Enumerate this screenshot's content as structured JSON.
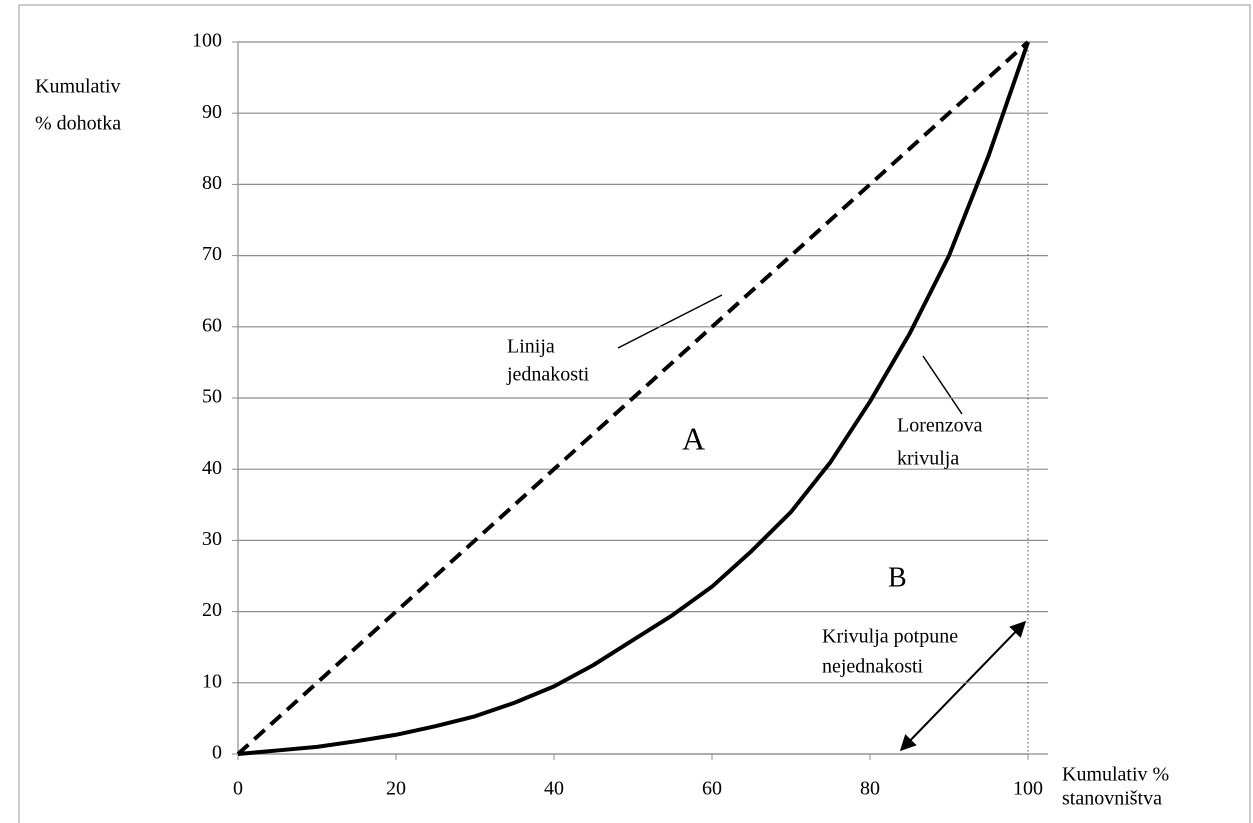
{
  "chart_data": {
    "type": "line",
    "y_label": [
      "Kumulativ",
      "% dohotka"
    ],
    "x_label": [
      "Kumulativ %",
      "stanovništva"
    ],
    "xlim": [
      0,
      100
    ],
    "ylim": [
      0,
      100
    ],
    "xticks": [
      0,
      20,
      40,
      60,
      80,
      100
    ],
    "yticks": [
      0,
      10,
      20,
      30,
      40,
      50,
      60,
      70,
      80,
      90,
      100
    ],
    "grid": true,
    "series": [
      {
        "color": "#000000",
        "dashed": true,
        "x": [
          0,
          100
        ],
        "values": [
          0,
          100
        ]
      },
      {
        "color": "#000000",
        "dashed": false,
        "x": [
          0,
          5,
          10,
          15,
          20,
          25,
          30,
          35,
          40,
          45,
          50,
          55,
          60,
          65,
          70,
          75,
          80,
          85,
          90,
          95,
          100
        ],
        "values": [
          0,
          0.5,
          1,
          1.8,
          2.7,
          3.9,
          5.3,
          7.2,
          9.5,
          12.5,
          16,
          19.5,
          23.5,
          28.5,
          34,
          41,
          49.5,
          59,
          70,
          84,
          100
        ]
      }
    ],
    "annotations": [
      {
        "lines": [
          "Linija",
          "jednakosti"
        ]
      },
      {
        "lines": [
          "A"
        ]
      },
      {
        "lines": [
          "Lorenzova",
          "krivulja"
        ]
      },
      {
        "lines": [
          "B"
        ]
      },
      {
        "lines": [
          "Krivulja potpune",
          "nejednakosti"
        ]
      }
    ]
  }
}
